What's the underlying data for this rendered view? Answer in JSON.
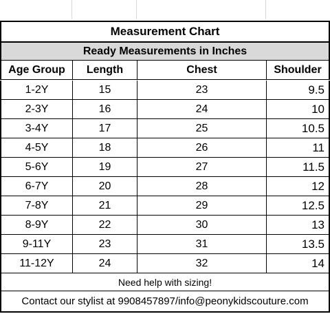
{
  "table": {
    "title": "Measurement Chart",
    "subtitle": "Ready Measurements in Inches",
    "headers": [
      "Age Group",
      "Length",
      "Chest",
      "Shoulder"
    ],
    "rows": [
      [
        "1-2Y",
        "15",
        "23",
        "9.5"
      ],
      [
        "2-3Y",
        "16",
        "24",
        "10"
      ],
      [
        "3-4Y",
        "17",
        "25",
        "10.5"
      ],
      [
        "4-5Y",
        "18",
        "26",
        "11"
      ],
      [
        "5-6Y",
        "19",
        "27",
        "11.5"
      ],
      [
        "6-7Y",
        "20",
        "28",
        "12"
      ],
      [
        "7-8Y",
        "21",
        "29",
        "12.5"
      ],
      [
        "8-9Y",
        "22",
        "30",
        "13"
      ],
      [
        "9-11Y",
        "23",
        "31",
        "13.5"
      ],
      [
        "11-12Y",
        "24",
        "32",
        "14"
      ]
    ],
    "help_text": "Need help with sizing!",
    "contact_text": "Contact our stylist at 9908457897/info@peonykidscouture.com"
  },
  "colors": {
    "subtitle_background": "#d9d9d9",
    "border": "#000000",
    "gridline": "#d9d9d9"
  }
}
